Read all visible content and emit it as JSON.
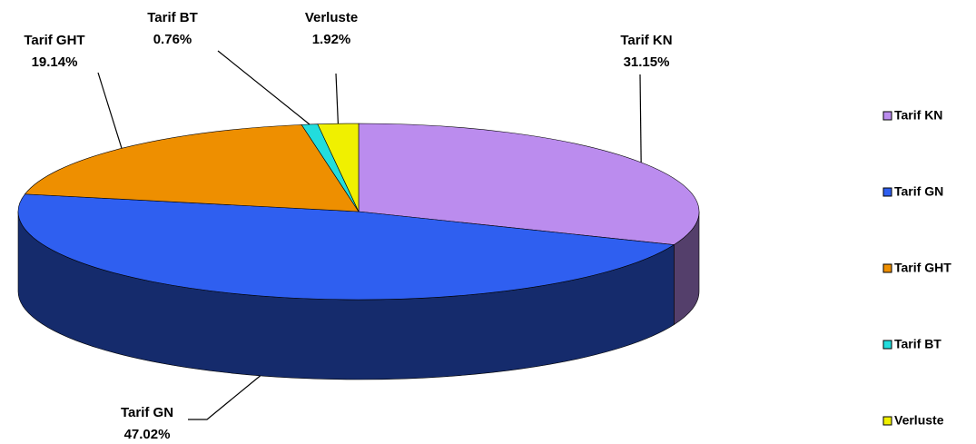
{
  "chart_data": {
    "type": "pie3d",
    "categories": [
      "Tarif KN",
      "Tarif GN",
      "Tarif GHT",
      "Tarif BT",
      "Verluste"
    ],
    "values": [
      31.15,
      47.02,
      19.14,
      0.76,
      1.92
    ],
    "value_labels": [
      "31.15%",
      "47.02%",
      "19.14%",
      "0.76%",
      "1.92%"
    ],
    "colors": [
      "#bb8cee",
      "#2f5ff0",
      "#ee8f00",
      "#22dddd",
      "#f0f000"
    ],
    "legend": "right"
  }
}
